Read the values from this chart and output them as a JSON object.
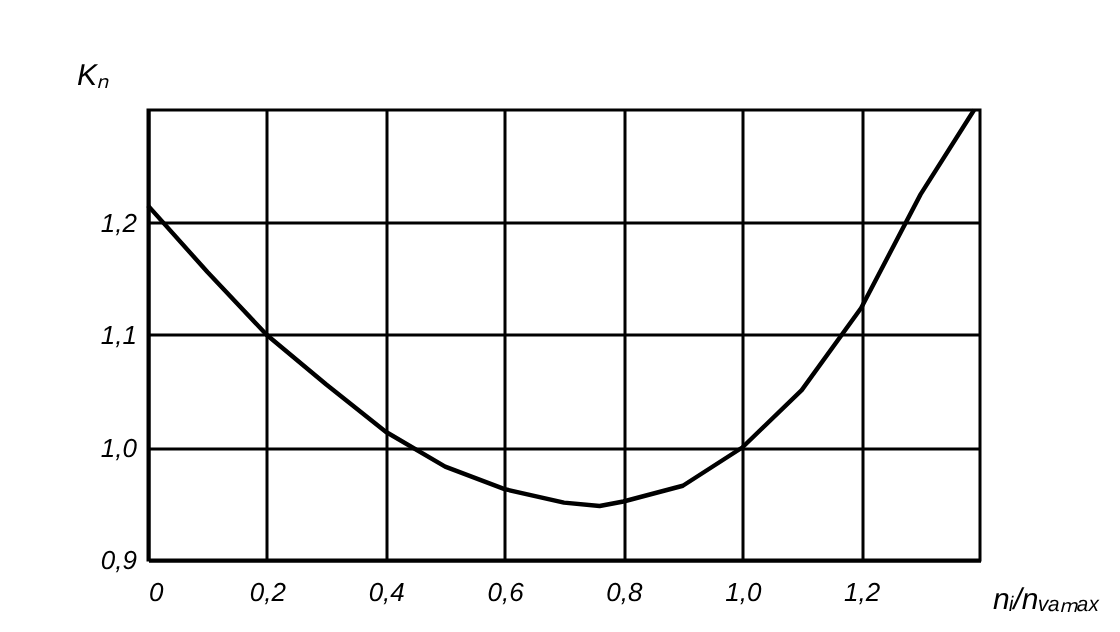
{
  "chart_data": {
    "type": "line",
    "xlabel": "nᵢ/nᵥₐₘₐₓ",
    "ylabel": "Kₙ",
    "x": [
      0,
      0.1,
      0.2,
      0.3,
      0.4,
      0.5,
      0.6,
      0.7,
      0.76,
      0.8,
      0.9,
      1.0,
      1.1,
      1.2,
      1.3,
      1.39
    ],
    "series": [
      {
        "color": "#000000",
        "values": [
          1.215,
          1.156,
          1.1,
          1.056,
          1.014,
          0.983,
          0.963,
          0.951,
          0.948,
          0.952,
          0.966,
          1.0,
          1.051,
          1.124,
          1.225,
          1.3
        ]
      }
    ],
    "xlim": [
      0,
      1.4
    ],
    "ylim": [
      0.9,
      1.3
    ],
    "xticks": [
      0,
      {
        "value": 0.2,
        "label": "0,2"
      },
      {
        "value": 0.4,
        "label": "0,4"
      },
      {
        "value": 0.6,
        "label": "0,6"
      },
      {
        "value": 0.8,
        "label": "0,8"
      },
      {
        "value": 1.0,
        "label": "1,0"
      },
      {
        "value": 1.2,
        "label": "1,2"
      }
    ],
    "yticks": [
      {
        "value": 0.9,
        "label": "0,9"
      },
      {
        "value": 1.0,
        "label": "1,0"
      },
      {
        "value": 1.1,
        "label": "1,1"
      },
      {
        "value": 1.2,
        "label": "1,2"
      }
    ],
    "grid": true,
    "marker": "none",
    "line_style": "solid"
  }
}
